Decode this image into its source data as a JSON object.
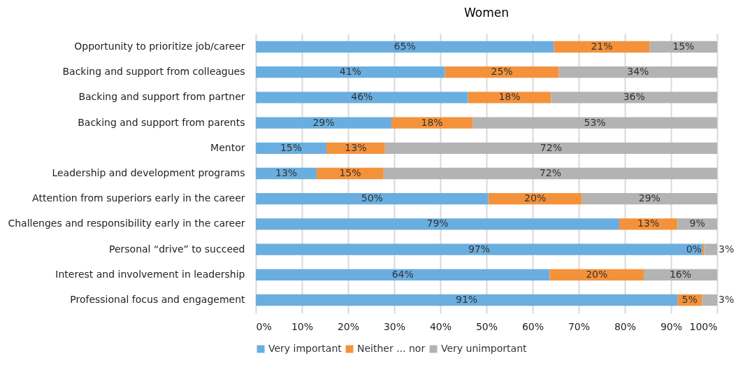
{
  "chart_data": {
    "type": "bar",
    "orientation": "horizontal",
    "stacked": true,
    "title": "Women",
    "categories": [
      "Opportunity to prioritize job/career",
      "Backing and support from colleagues ",
      "Backing and support from partner ",
      "Backing and support from parents",
      "Mentor",
      "Leadership and development programs",
      "Attention from superiors early in the career",
      "Challenges and responsibility early in the career",
      "Personal “drive” to succeed",
      "Interest and involvement in leadership",
      "Professional focus and engagement"
    ],
    "series": [
      {
        "name": "Very important",
        "color": "#6aaee0",
        "values": [
          64.6,
          41,
          46,
          29.4,
          15.3,
          13.2,
          50.4,
          78.8,
          96.8,
          63.7,
          91.4
        ],
        "value_labels": [
          "65%",
          "41%",
          "46%",
          "29%",
          "15%",
          "13%",
          "50%",
          "79%",
          "97%",
          "64%",
          "91%"
        ]
      },
      {
        "name": "Neither ... nor",
        "color": "#f4923c",
        "values": [
          20.8,
          24.7,
          18,
          17.6,
          12.7,
          14.5,
          20.3,
          12.6,
          0.4,
          20.4,
          5.3
        ],
        "value_labels": [
          "21%",
          "25%",
          "18%",
          "18%",
          "13%",
          "15%",
          "20%",
          "13%",
          "0%",
          "20%",
          "5%"
        ]
      },
      {
        "name": "Very unimportant",
        "color": "#b3b3b3",
        "values": [
          14.6,
          34.3,
          36,
          53,
          72,
          72.3,
          29.3,
          8.6,
          2.8,
          15.9,
          3.3
        ],
        "value_labels": [
          "15%",
          "34%",
          "36%",
          "53%",
          "72%",
          "72%",
          "29%",
          "9%",
          "3%",
          "16%",
          "3%"
        ]
      }
    ],
    "xlim": [
      0,
      100
    ],
    "xticks": [
      {
        "value": 0,
        "label": "0%"
      },
      {
        "value": 10,
        "label": "10%"
      },
      {
        "value": 20,
        "label": "20%"
      },
      {
        "value": 30,
        "label": "30%"
      },
      {
        "value": 40,
        "label": "40%"
      },
      {
        "value": 50,
        "label": "50%"
      },
      {
        "value": 60,
        "label": "60%"
      },
      {
        "value": 70,
        "label": "70%"
      },
      {
        "value": 80,
        "label": "80%"
      },
      {
        "value": 90,
        "label": "90%"
      },
      {
        "value": 100,
        "label": "100%"
      }
    ],
    "grid": "x",
    "legend": "bottom"
  }
}
